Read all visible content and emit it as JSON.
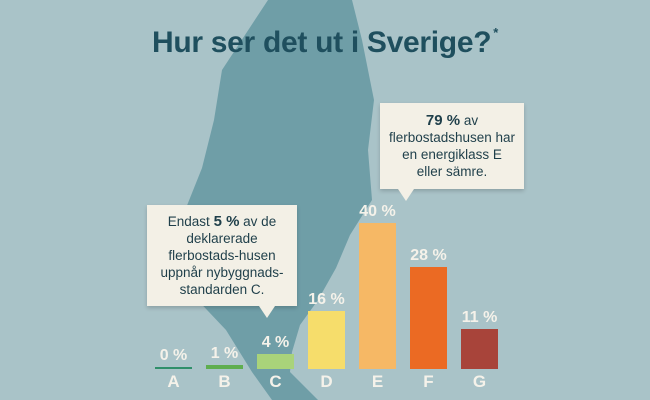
{
  "title": "Hur ser det ut i Sverige?",
  "title_mark": "*",
  "callout_left": {
    "pre": "Endast ",
    "highlight": "5 %",
    "post": " av de deklarerade flerbostads-husen uppnår nybyggnads-standarden C."
  },
  "callout_right": {
    "highlight": "79 %",
    "post": " av flerbostadshusen har en energiklass E eller sämre."
  },
  "chart_data": {
    "type": "bar",
    "title": "Hur ser det ut i Sverige?",
    "xlabel": "",
    "ylabel": "",
    "ylim": [
      0,
      40
    ],
    "categories": [
      "A",
      "B",
      "C",
      "D",
      "E",
      "F",
      "G"
    ],
    "values": [
      0,
      1,
      4,
      16,
      40,
      28,
      11
    ],
    "value_labels": [
      "0 %",
      "1 %",
      "4 %",
      "16 %",
      "40 %",
      "28 %",
      "11 %"
    ],
    "colors": [
      "#2f8f6a",
      "#5fae4f",
      "#a9d37a",
      "#f6dd6b",
      "#f6b865",
      "#eb6a23",
      "#a8443a"
    ]
  },
  "colors": {
    "background": "#a9c3c8",
    "map": "#6f9ea7",
    "title": "#1f4f5e",
    "callout_bg": "#f3f0e6",
    "label": "#f5f2ea"
  }
}
